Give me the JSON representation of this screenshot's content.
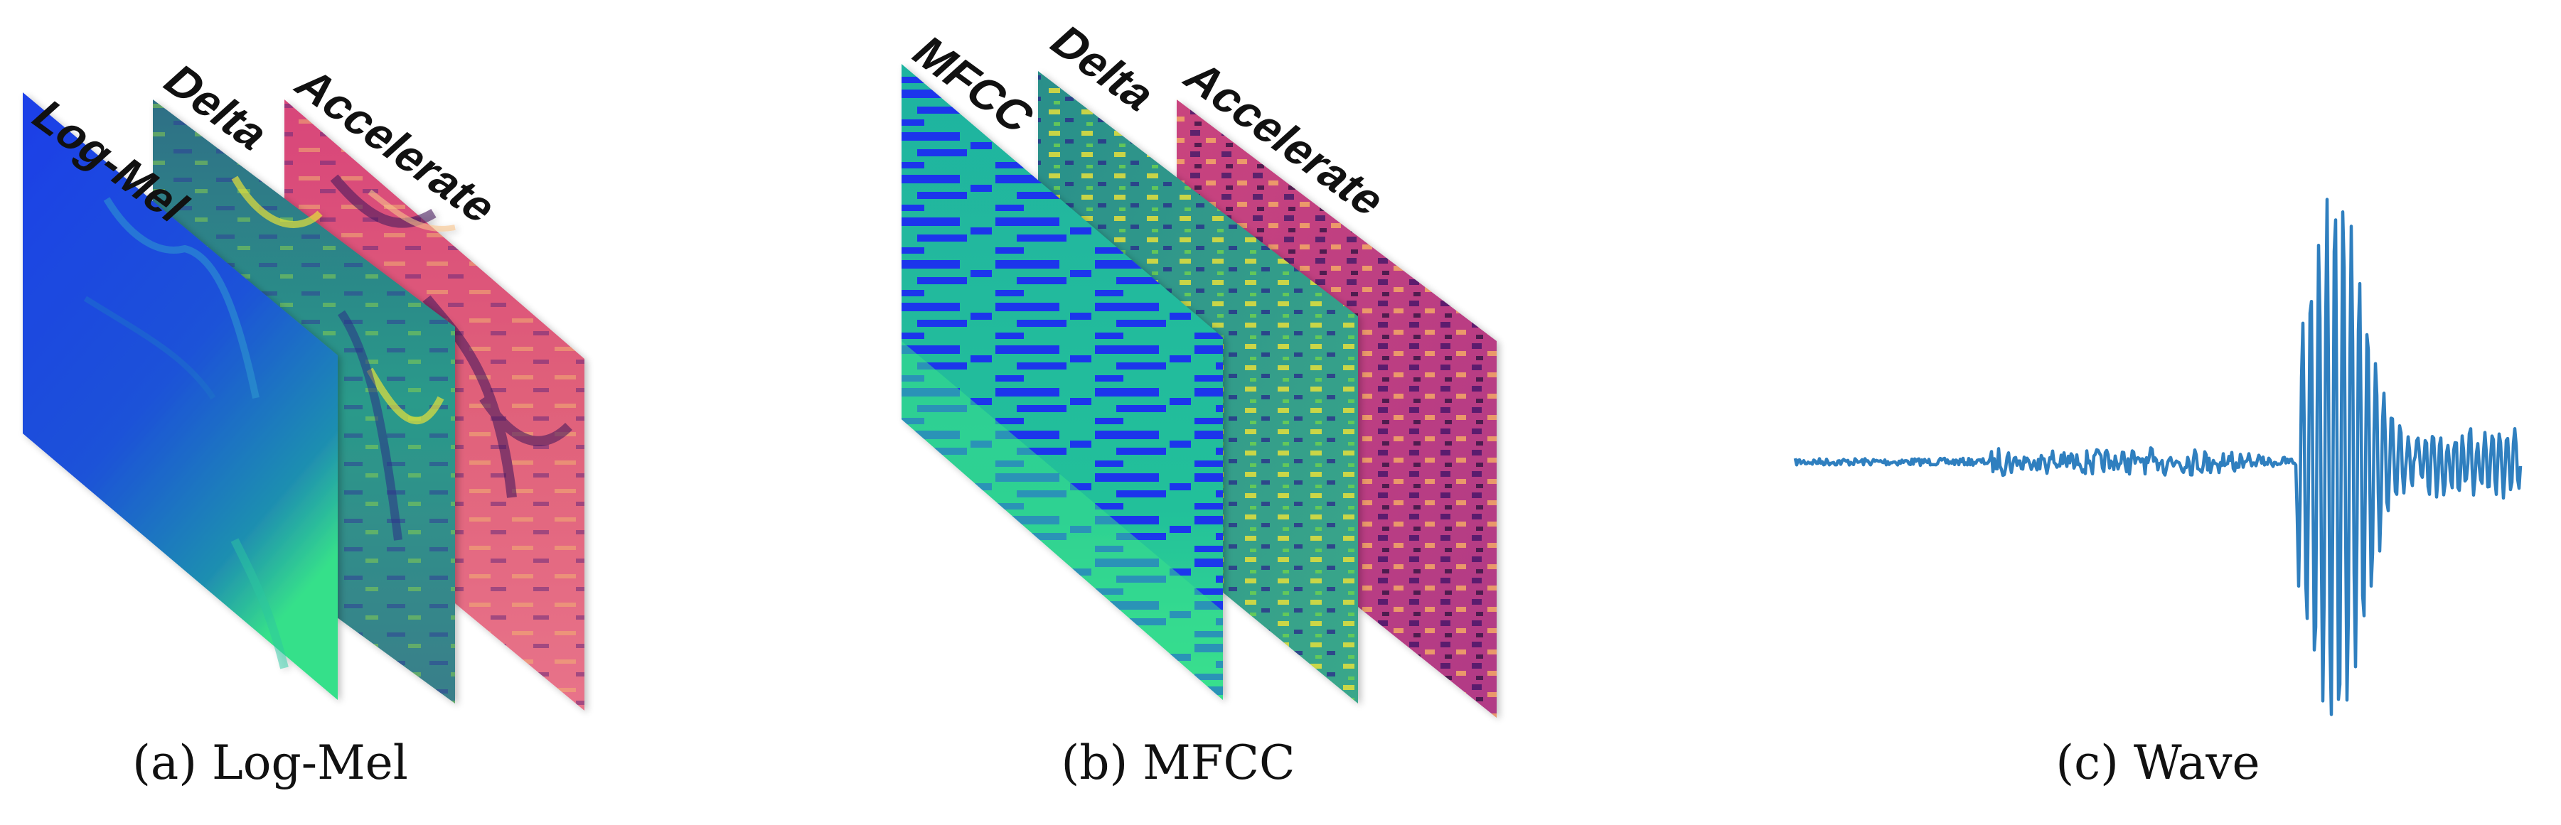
{
  "figure": {
    "panels": [
      {
        "id": "logmel",
        "caption": "(a) Log-Mel",
        "layers": [
          "Log-Mel",
          "Delta",
          "Accelerate"
        ]
      },
      {
        "id": "mfcc",
        "caption": "(b) MFCC",
        "layers": [
          "MFCC",
          "Delta",
          "Accelerate"
        ]
      },
      {
        "id": "wave",
        "caption": "(c) Wave"
      }
    ],
    "colors": {
      "viridis_dark": "#2a1f8f",
      "viridis_blue": "#1e3ee6",
      "viridis_teal": "#1fa38a",
      "viridis_green": "#2bd48a",
      "viridis_yellow": "#e8e23a",
      "magma_pink": "#d94a79",
      "magma_purple": "#4d1f6e",
      "magma_orange": "#f1a25c",
      "wave_line": "#2f7fbf"
    }
  }
}
